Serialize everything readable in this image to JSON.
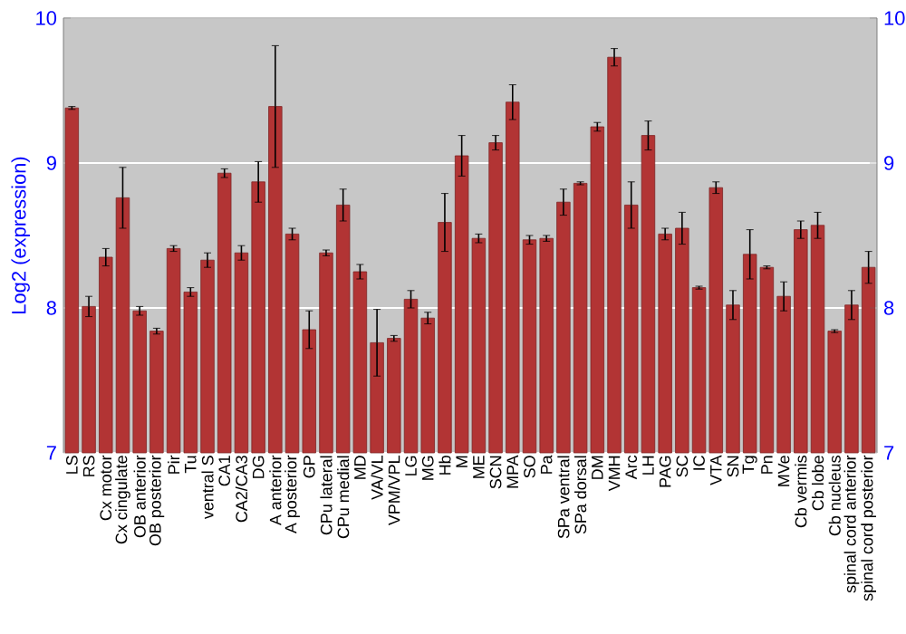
{
  "chart_data": {
    "type": "bar",
    "ylabel": "Log2 (expression)",
    "categories": [
      "LS",
      "RS",
      "Cx motor",
      "Cx cingulate",
      "OB anterior",
      "OB posterior",
      "Pir",
      "Tu",
      "ventral S",
      "CA1",
      "CA2/CA3",
      "DG",
      "A anterior",
      "A posterior",
      "GP",
      "CPu lateral",
      "CPu medial",
      "MD",
      "VA/VL",
      "VPM/VPL",
      "LG",
      "MG",
      "Hb",
      "M",
      "ME",
      "SCN",
      "MPA",
      "SO",
      "Pa",
      "SPa ventral",
      "SPa dorsal",
      "DM",
      "VMH",
      "Arc",
      "LH",
      "PAG",
      "SC",
      "IC",
      "VTA",
      "SN",
      "Tg",
      "Pn",
      "MVe",
      "Cb vermis",
      "Cb lobe",
      "Cb nucleus",
      "spinal cord anterior",
      "spinal cord posterior"
    ],
    "values": [
      9.38,
      8.01,
      8.35,
      8.76,
      7.98,
      7.84,
      8.41,
      8.11,
      8.33,
      8.93,
      8.38,
      8.87,
      9.39,
      8.51,
      7.85,
      8.38,
      8.71,
      8.25,
      7.76,
      7.79,
      8.06,
      7.93,
      8.59,
      9.05,
      8.48,
      9.14,
      9.42,
      8.47,
      8.48,
      8.73,
      8.86,
      9.25,
      9.73,
      8.71,
      9.19,
      8.51,
      8.55,
      8.14,
      8.83,
      8.02,
      8.37,
      8.28,
      8.08,
      8.54,
      8.57,
      7.84,
      8.02,
      8.28
    ],
    "errors": [
      0.01,
      0.07,
      0.06,
      0.21,
      0.03,
      0.02,
      0.02,
      0.03,
      0.05,
      0.03,
      0.05,
      0.14,
      0.42,
      0.04,
      0.13,
      0.02,
      0.11,
      0.05,
      0.23,
      0.02,
      0.06,
      0.04,
      0.2,
      0.14,
      0.03,
      0.05,
      0.12,
      0.03,
      0.02,
      0.09,
      0.01,
      0.03,
      0.06,
      0.16,
      0.1,
      0.04,
      0.11,
      0.01,
      0.04,
      0.1,
      0.17,
      0.01,
      0.1,
      0.06,
      0.09,
      0.01,
      0.1,
      0.11
    ],
    "color": "#b23434",
    "ylim": [
      7,
      10
    ],
    "yticks": [
      7,
      8,
      9,
      10
    ],
    "y2lim": [
      7,
      10
    ],
    "y2ticks": [
      7,
      8,
      9,
      10
    ],
    "grid": "y"
  }
}
